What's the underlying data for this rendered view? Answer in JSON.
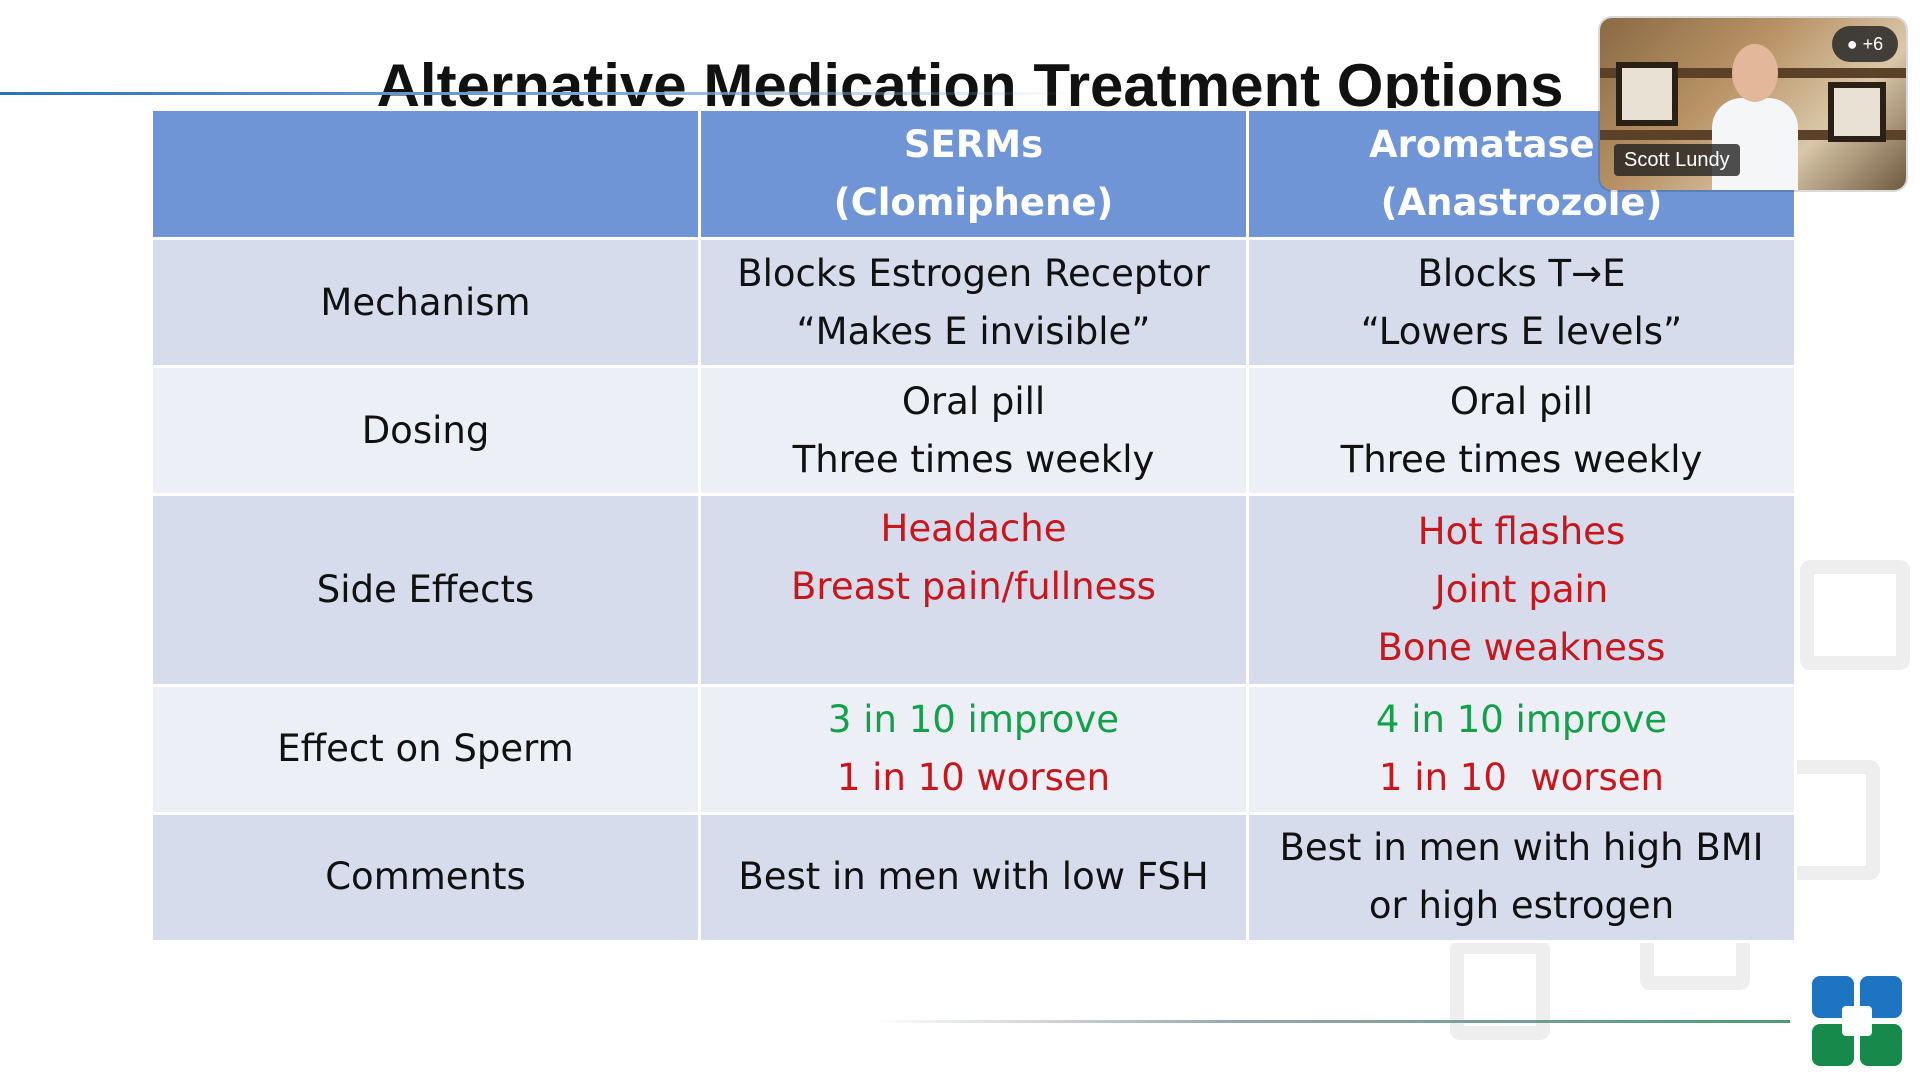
{
  "slide": {
    "title": "Alternative Medication Treatment Options"
  },
  "table": {
    "columns": [
      {
        "line1": "SERMs",
        "line2": "(Clomiphene)"
      },
      {
        "line1": "Aromatase Inh",
        "line2": "(Anastrozole)"
      }
    ],
    "rows": [
      {
        "label": "Mechanism",
        "serm": [
          "Blocks Estrogen Receptor",
          "“Makes E invisible”"
        ],
        "ai": [
          "Blocks T→E",
          "“Lowers E levels”"
        ]
      },
      {
        "label": "Dosing",
        "serm": [
          "Oral pill",
          "Three times weekly"
        ],
        "ai": [
          "Oral pill",
          "Three times weekly"
        ]
      },
      {
        "label": "Side Effects",
        "serm": [
          "Headache",
          "Breast pain/fullness"
        ],
        "ai": [
          "Hot flashes",
          "Joint pain",
          "Bone weakness"
        ]
      },
      {
        "label": "Effect on Sperm",
        "serm": [
          "3 in 10 improve",
          "1 in 10 worsen"
        ],
        "ai": [
          "4 in 10 improve",
          "1 in 10  worsen"
        ]
      },
      {
        "label": "Comments",
        "serm": [
          "Best in men with low FSH"
        ],
        "ai": [
          "Best in men with high BMI",
          "or high estrogen"
        ]
      }
    ]
  },
  "video": {
    "participant_name": "Scott Lundy",
    "participants_badge": "+6",
    "badge_icon": "person-icon"
  },
  "colors": {
    "header_bg": "#6f95d6",
    "row_dark": "#d6dcec",
    "row_light": "#eceff6",
    "negative": "#c8161d",
    "positive": "#12a04a"
  }
}
